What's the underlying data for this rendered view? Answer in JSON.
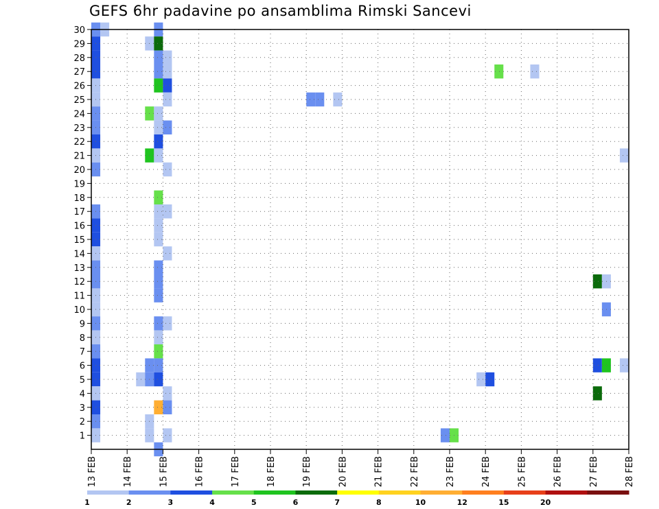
{
  "chart_data": {
    "type": "heatmap",
    "title": "GEFS 6hr padavine po ansamblima Rimski Sancevi",
    "xlabel": "",
    "ylabel": "",
    "x_ticks": [
      "13 FEB",
      "14 FEB",
      "15 FEB",
      "16 FEB",
      "17 FEB",
      "18 FEB",
      "19 FEB",
      "20 FEB",
      "21 FEB",
      "22 FEB",
      "23 FEB",
      "24 FEB",
      "25 FEB",
      "26 FEB",
      "27 FEB",
      "28 FEB"
    ],
    "y_ticks": [
      "1",
      "2",
      "3",
      "4",
      "5",
      "6",
      "7",
      "8",
      "9",
      "10",
      "11",
      "12",
      "13",
      "14",
      "15",
      "16",
      "17",
      "18",
      "19",
      "20",
      "21",
      "22",
      "23",
      "24",
      "25",
      "26",
      "27",
      "28",
      "29",
      "30"
    ],
    "x_range": [
      0,
      60
    ],
    "y_range": [
      0,
      30
    ],
    "grid": true,
    "colorbar": {
      "position": "bottom",
      "labels": [
        "1",
        "2",
        "3",
        "4",
        "5",
        "6",
        "7",
        "8",
        "10",
        "12",
        "15",
        "20"
      ],
      "colors": [
        "#b3c6f2",
        "#6a8ff0",
        "#1f4fe0",
        "#66e04a",
        "#1fc41f",
        "#0b6b0b",
        "#ffff00",
        "#ffd21f",
        "#ffae33",
        "#ff7f1f",
        "#e8401a",
        "#b01010",
        "#7a1010"
      ]
    },
    "cells": [
      {
        "x": 0,
        "y": 30,
        "v": 2.5
      },
      {
        "x": 1,
        "y": 30,
        "v": 1.5
      },
      {
        "x": 7,
        "y": 30,
        "v": 2.5
      },
      {
        "x": 0,
        "y": 29,
        "v": 3.5
      },
      {
        "x": 6,
        "y": 29,
        "v": 1.5
      },
      {
        "x": 7,
        "y": 29,
        "v": 6.5
      },
      {
        "x": 0,
        "y": 28,
        "v": 3.5
      },
      {
        "x": 7,
        "y": 28,
        "v": 2.5
      },
      {
        "x": 8,
        "y": 28,
        "v": 1.5
      },
      {
        "x": 0,
        "y": 27,
        "v": 3.5
      },
      {
        "x": 7,
        "y": 27,
        "v": 2.5
      },
      {
        "x": 8,
        "y": 27,
        "v": 1.5
      },
      {
        "x": 45,
        "y": 27,
        "v": 4.5
      },
      {
        "x": 49,
        "y": 27,
        "v": 1.5
      },
      {
        "x": 0,
        "y": 26,
        "v": 1.5
      },
      {
        "x": 7,
        "y": 26,
        "v": 5.5
      },
      {
        "x": 8,
        "y": 26,
        "v": 3.5
      },
      {
        "x": 0,
        "y": 25,
        "v": 1.5
      },
      {
        "x": 8,
        "y": 25,
        "v": 1.5
      },
      {
        "x": 24,
        "y": 25,
        "v": 2.5
      },
      {
        "x": 25,
        "y": 25,
        "v": 2.5
      },
      {
        "x": 27,
        "y": 25,
        "v": 1.5
      },
      {
        "x": 0,
        "y": 24,
        "v": 2.5
      },
      {
        "x": 6,
        "y": 24,
        "v": 4.5
      },
      {
        "x": 7,
        "y": 24,
        "v": 1.5
      },
      {
        "x": 0,
        "y": 23,
        "v": 2.5
      },
      {
        "x": 7,
        "y": 23,
        "v": 1.5
      },
      {
        "x": 8,
        "y": 23,
        "v": 2.5
      },
      {
        "x": 0,
        "y": 22,
        "v": 3.5
      },
      {
        "x": 7,
        "y": 22,
        "v": 3.5
      },
      {
        "x": 0,
        "y": 21,
        "v": 1.5
      },
      {
        "x": 6,
        "y": 21,
        "v": 5.5
      },
      {
        "x": 7,
        "y": 21,
        "v": 1.5
      },
      {
        "x": 59,
        "y": 21,
        "v": 1.5
      },
      {
        "x": 0,
        "y": 20,
        "v": 2.5
      },
      {
        "x": 8,
        "y": 20,
        "v": 1.5
      },
      {
        "x": 7,
        "y": 18,
        "v": 4.5
      },
      {
        "x": 0,
        "y": 17,
        "v": 2.5
      },
      {
        "x": 7,
        "y": 17,
        "v": 1.5
      },
      {
        "x": 8,
        "y": 17,
        "v": 1.5
      },
      {
        "x": 0,
        "y": 16,
        "v": 3.5
      },
      {
        "x": 7,
        "y": 16,
        "v": 1.5
      },
      {
        "x": 0,
        "y": 15,
        "v": 3.5
      },
      {
        "x": 7,
        "y": 15,
        "v": 1.5
      },
      {
        "x": 0,
        "y": 14,
        "v": 1.5
      },
      {
        "x": 8,
        "y": 14,
        "v": 1.5
      },
      {
        "x": 0,
        "y": 13,
        "v": 2.5
      },
      {
        "x": 7,
        "y": 13,
        "v": 2.5
      },
      {
        "x": 0,
        "y": 12,
        "v": 2.5
      },
      {
        "x": 7,
        "y": 12,
        "v": 2.5
      },
      {
        "x": 56,
        "y": 12,
        "v": 6.5
      },
      {
        "x": 57,
        "y": 12,
        "v": 1.5
      },
      {
        "x": 0,
        "y": 11,
        "v": 1.5
      },
      {
        "x": 7,
        "y": 11,
        "v": 2.5
      },
      {
        "x": 0,
        "y": 10,
        "v": 1.5
      },
      {
        "x": 57,
        "y": 10,
        "v": 2.5
      },
      {
        "x": 0,
        "y": 9,
        "v": 2.5
      },
      {
        "x": 7,
        "y": 9,
        "v": 2.5
      },
      {
        "x": 8,
        "y": 9,
        "v": 1.5
      },
      {
        "x": 0,
        "y": 8,
        "v": 1.5
      },
      {
        "x": 7,
        "y": 8,
        "v": 1.5
      },
      {
        "x": 0,
        "y": 7,
        "v": 2.5
      },
      {
        "x": 7,
        "y": 7,
        "v": 4.5
      },
      {
        "x": 0,
        "y": 6,
        "v": 3.5
      },
      {
        "x": 6,
        "y": 6,
        "v": 2.5
      },
      {
        "x": 7,
        "y": 6,
        "v": 2.5
      },
      {
        "x": 56,
        "y": 6,
        "v": 3.5
      },
      {
        "x": 57,
        "y": 6,
        "v": 5.5
      },
      {
        "x": 59,
        "y": 6,
        "v": 1.5
      },
      {
        "x": 0,
        "y": 5,
        "v": 3.5
      },
      {
        "x": 5,
        "y": 5,
        "v": 1.5
      },
      {
        "x": 6,
        "y": 5,
        "v": 2.5
      },
      {
        "x": 7,
        "y": 5,
        "v": 3.5
      },
      {
        "x": 43,
        "y": 5,
        "v": 1.5
      },
      {
        "x": 44,
        "y": 5,
        "v": 3.5
      },
      {
        "x": 0,
        "y": 4,
        "v": 1.5
      },
      {
        "x": 8,
        "y": 4,
        "v": 1.5
      },
      {
        "x": 56,
        "y": 4,
        "v": 6.5
      },
      {
        "x": 0,
        "y": 3,
        "v": 3.5
      },
      {
        "x": 7,
        "y": 3,
        "v": 11
      },
      {
        "x": 8,
        "y": 3,
        "v": 2.5
      },
      {
        "x": 0,
        "y": 2,
        "v": 2.5
      },
      {
        "x": 6,
        "y": 2,
        "v": 1.5
      },
      {
        "x": 0,
        "y": 1,
        "v": 1.5
      },
      {
        "x": 6,
        "y": 1,
        "v": 1.5
      },
      {
        "x": 8,
        "y": 1,
        "v": 1.5
      },
      {
        "x": 39,
        "y": 1,
        "v": 2.5
      },
      {
        "x": 40,
        "y": 1,
        "v": 4.5
      },
      {
        "x": 7,
        "y": 0,
        "v": 2.5
      }
    ]
  }
}
